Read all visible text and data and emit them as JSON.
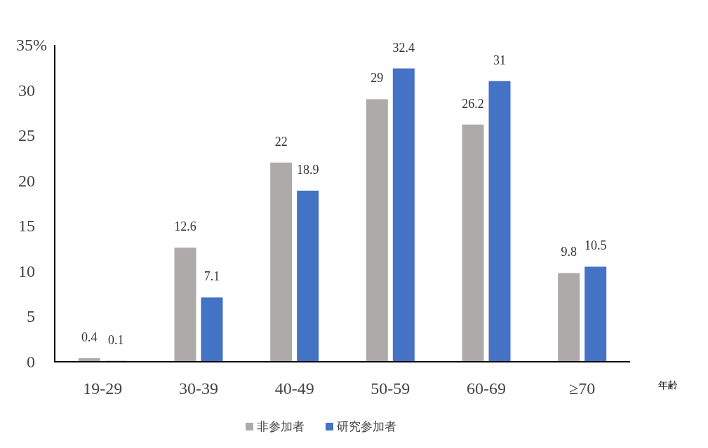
{
  "chart_data": {
    "type": "bar",
    "xlabel": "年齢",
    "categories": [
      "19-29",
      "30-39",
      "40-49",
      "50-59",
      "60-69",
      "≥70"
    ],
    "series": [
      {
        "name": "非参加者",
        "color": "#aeaaaa",
        "values": [
          0.4,
          12.6,
          22,
          29,
          26.2,
          9.8
        ]
      },
      {
        "name": "研究参加者",
        "color": "#4472c4",
        "values": [
          0.1,
          7.1,
          18.9,
          32.4,
          31,
          10.5
        ]
      }
    ],
    "ylim": [
      0,
      35
    ],
    "yticks": [
      0,
      5,
      10,
      15,
      20,
      25,
      30,
      {
        "value": 35,
        "label": "35%"
      }
    ],
    "data_labels": true,
    "grid": false,
    "legend": "bottom"
  }
}
